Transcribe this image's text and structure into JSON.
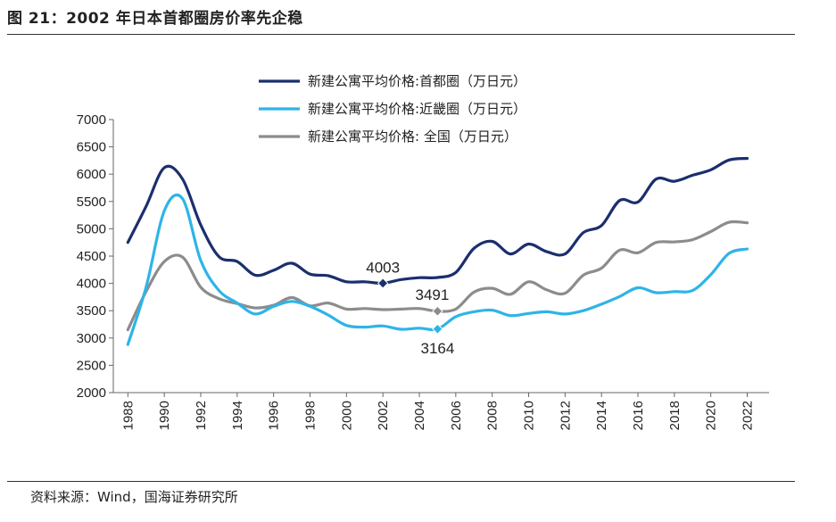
{
  "header": {
    "title": "图 21：2002 年日本首都圈房价率先企稳"
  },
  "footer": {
    "source": "资料来源：Wind，国海证券研究所"
  },
  "chart_data": {
    "type": "line",
    "x_ticks": [
      "1988",
      "1990",
      "1992",
      "1994",
      "1996",
      "1998",
      "2000",
      "2002",
      "2004",
      "2006",
      "2008",
      "2010",
      "2012",
      "2014",
      "2016",
      "2018",
      "2020",
      "2022"
    ],
    "y_ticks": [
      "7000",
      "6500",
      "6000",
      "5500",
      "5000",
      "4500",
      "4000",
      "3500",
      "3000",
      "2500",
      "2000"
    ],
    "ylim": [
      2000,
      7000
    ],
    "xlim": [
      1987.2,
      2023.2
    ],
    "colors": {
      "capital": "#1b2f6e",
      "kinki": "#2eb4e8",
      "national": "#8c8c8c"
    },
    "series": [
      {
        "key": "capital",
        "name": "新建公寓平均价格:首都圈（万日元）",
        "x": [
          1988,
          1989,
          1990,
          1991,
          1992,
          1993,
          1994,
          1995,
          1996,
          1997,
          1998,
          1999,
          2000,
          2001,
          2002,
          2003,
          2004,
          2005,
          2006,
          2007,
          2008,
          2009,
          2010,
          2011,
          2012,
          2013,
          2014,
          2015,
          2016,
          2017,
          2018,
          2019,
          2020,
          2021,
          2022
        ],
        "values": [
          4750,
          5410,
          6120,
          5910,
          5070,
          4490,
          4400,
          4150,
          4240,
          4370,
          4170,
          4140,
          4030,
          4030,
          4003,
          4070,
          4104,
          4108,
          4200,
          4640,
          4770,
          4540,
          4720,
          4580,
          4540,
          4930,
          5060,
          5520,
          5490,
          5910,
          5870,
          5980,
          6080,
          6260,
          6290
        ]
      },
      {
        "key": "kinki",
        "name": "新建公寓平均价格:近畿圈（万日元）",
        "x": [
          1988,
          1989,
          1990,
          1991,
          1992,
          1993,
          1994,
          1995,
          1996,
          1997,
          1998,
          1999,
          2000,
          2001,
          2002,
          2003,
          2004,
          2005,
          2006,
          2007,
          2008,
          2009,
          2010,
          2011,
          2012,
          2013,
          2014,
          2015,
          2016,
          2017,
          2018,
          2019,
          2020,
          2021,
          2022
        ],
        "values": [
          2880,
          3930,
          5330,
          5550,
          4420,
          3870,
          3640,
          3440,
          3580,
          3670,
          3580,
          3420,
          3230,
          3200,
          3220,
          3160,
          3180,
          3164,
          3390,
          3480,
          3510,
          3410,
          3450,
          3480,
          3440,
          3500,
          3620,
          3760,
          3920,
          3830,
          3850,
          3870,
          4160,
          4550,
          4630
        ]
      },
      {
        "key": "national",
        "name": "新建公寓平均价格: 全国（万日元）",
        "x": [
          1988,
          1989,
          1990,
          1991,
          1992,
          1993,
          1994,
          1995,
          1996,
          1997,
          1998,
          1999,
          2000,
          2001,
          2002,
          2003,
          2004,
          2005,
          2006,
          2007,
          2008,
          2009,
          2010,
          2011,
          2012,
          2013,
          2014,
          2015,
          2016,
          2017,
          2018,
          2019,
          2020,
          2021,
          2022
        ],
        "values": [
          3150,
          3850,
          4400,
          4480,
          3930,
          3720,
          3630,
          3550,
          3600,
          3740,
          3590,
          3640,
          3530,
          3540,
          3520,
          3530,
          3540,
          3491,
          3530,
          3840,
          3910,
          3800,
          4030,
          3880,
          3820,
          4150,
          4280,
          4610,
          4560,
          4750,
          4760,
          4800,
          4950,
          5120,
          5110
        ]
      }
    ],
    "annotations": [
      {
        "series": "capital",
        "x": 2002,
        "y": 4003,
        "label": "4003",
        "label_pos": "above"
      },
      {
        "series": "national",
        "x": 2005,
        "y": 3491,
        "label": "3491",
        "label_pos": "above-left"
      },
      {
        "series": "kinki",
        "x": 2005,
        "y": 3164,
        "label": "3164",
        "label_pos": "below"
      }
    ],
    "legend": {
      "position": "top-center"
    },
    "grid": false
  }
}
